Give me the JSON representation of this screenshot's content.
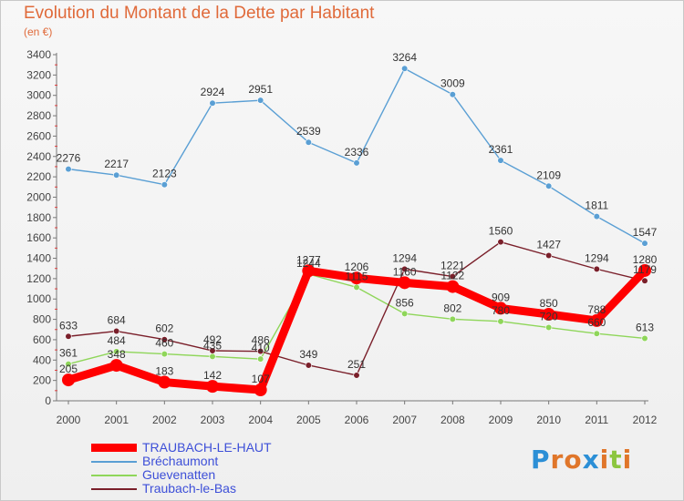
{
  "page": {
    "title": "Evolution du Montant de la Dette par Habitant",
    "subtitle": "(en €)",
    "brand_letters": [
      "P",
      "r",
      "o",
      "x",
      "i",
      "t",
      "i"
    ],
    "brand_colors": [
      "#2c8fd6",
      "#e0762a",
      "#e0762a",
      "#2c8fd6",
      "#e0762a",
      "#8cc63f",
      "#e0762a"
    ]
  },
  "chart_data": {
    "type": "line",
    "title": "Evolution du Montant de la Dette par Habitant",
    "subtitle": "(en €)",
    "x": [
      "2000",
      "2001",
      "2002",
      "2003",
      "2004",
      "2005",
      "2006",
      "2007",
      "2008",
      "2009",
      "2010",
      "2011",
      "2012"
    ],
    "ylim": [
      0,
      3400
    ],
    "yticks": [
      0,
      200,
      400,
      600,
      800,
      1000,
      1200,
      1400,
      1600,
      1800,
      2000,
      2200,
      2400,
      2600,
      2800,
      3000,
      3200,
      3400
    ],
    "grid": false,
    "legend_position": "bottom-left",
    "series": [
      {
        "name": "TRAUBACH-LE-HAUT",
        "color": "#ff0000",
        "values": [
          205,
          348,
          183,
          142,
          107,
          1277,
          1206,
          1160,
          1122,
          909,
          850,
          788,
          1280
        ],
        "labels": [
          "205",
          "348",
          "183",
          "142",
          "107",
          "1277",
          "1206",
          "1160",
          "1122",
          "909",
          "850",
          "788",
          "1280"
        ]
      },
      {
        "name": "Bréchaumont",
        "color": "#5a9fd4",
        "values": [
          2276,
          2217,
          2123,
          2924,
          2951,
          2539,
          2336,
          3264,
          3009,
          2361,
          2109,
          1811,
          1547
        ],
        "labels": [
          "2276",
          "2217",
          "2123",
          "2924",
          "2951",
          "2539",
          "2336",
          "3264",
          "3009",
          "2361",
          "2109",
          "1811",
          "1547"
        ]
      },
      {
        "name": "Guevenatten",
        "color": "#8fd65a",
        "values": [
          361,
          484,
          460,
          435,
          410,
          1244,
          1115,
          856,
          802,
          780,
          720,
          660,
          613
        ],
        "labels": [
          "361",
          "484",
          "460",
          "435",
          "410",
          "1244",
          "1115",
          "856",
          "802",
          "780",
          "720",
          "660",
          "613"
        ]
      },
      {
        "name": "Traubach-le-Bas",
        "color": "#7a1f2a",
        "values": [
          633,
          684,
          602,
          492,
          486,
          349,
          251,
          1294,
          1221,
          1560,
          1427,
          1294,
          1179
        ],
        "labels": [
          "633",
          "684",
          "602",
          "492",
          "486",
          "349",
          "251",
          "1294",
          "1221",
          "1560",
          "1427",
          "1294",
          "1179"
        ]
      }
    ]
  }
}
